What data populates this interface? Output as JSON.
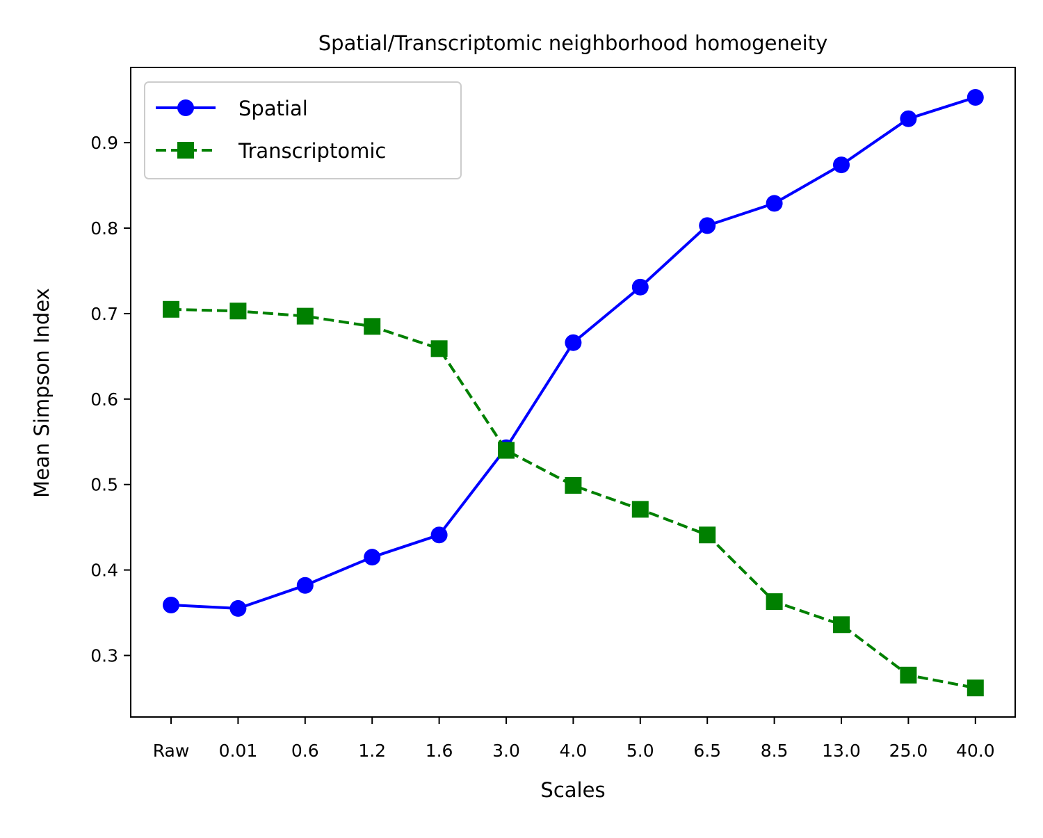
{
  "chart_data": {
    "type": "line",
    "title": "Spatial/Transcriptomic neighborhood homogeneity",
    "xlabel": "Scales",
    "ylabel": "Mean Simpson Index",
    "categories": [
      "Raw",
      "0.01",
      "0.6",
      "1.2",
      "1.6",
      "3.0",
      "4.0",
      "5.0",
      "6.5",
      "8.5",
      "13.0",
      "25.0",
      "40.0"
    ],
    "ylim": [
      0.228,
      0.988
    ],
    "yticks": [
      "0.3",
      "0.4",
      "0.5",
      "0.6",
      "0.7",
      "0.8",
      "0.9"
    ],
    "grid": false,
    "legend_position": "top-left",
    "series": [
      {
        "name": "Spatial",
        "color": "#0000ff",
        "marker": "circle",
        "line_style": "solid",
        "values": [
          0.359,
          0.355,
          0.382,
          0.415,
          0.441,
          0.543,
          0.666,
          0.731,
          0.803,
          0.829,
          0.874,
          0.928,
          0.953
        ]
      },
      {
        "name": "Transcriptomic",
        "color": "#008000",
        "marker": "square",
        "line_style": "dashed",
        "values": [
          0.705,
          0.703,
          0.697,
          0.685,
          0.659,
          0.54,
          0.499,
          0.471,
          0.441,
          0.363,
          0.336,
          0.277,
          0.262
        ]
      }
    ]
  }
}
